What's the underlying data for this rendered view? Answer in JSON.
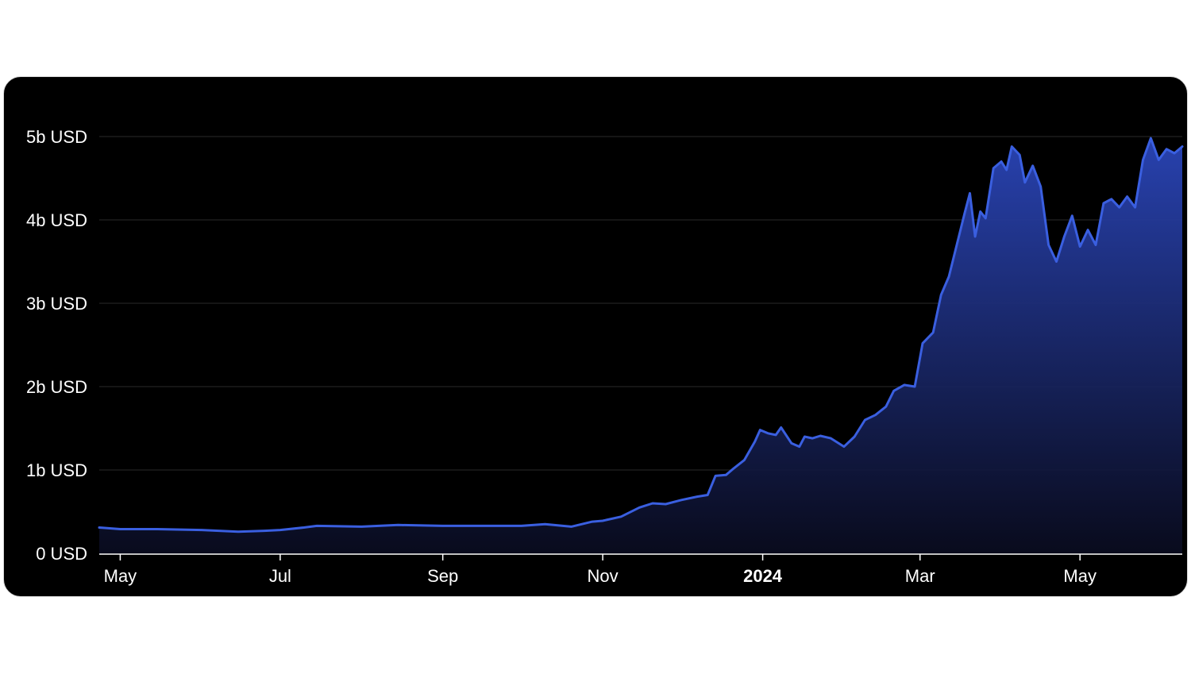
{
  "colors": {
    "background": "#000000",
    "line": "#3a5fe0",
    "area_top": "#2a45b8",
    "area_bottom": "#0a0c20",
    "grid": "#2a2a2a",
    "text": "#ffffff"
  },
  "chart_data": {
    "type": "area",
    "title": "",
    "xlabel": "",
    "ylabel": "",
    "unit": "USD",
    "ylim": [
      0,
      5000000000
    ],
    "xlim": [
      "2023-04-23",
      "2024-06-09"
    ],
    "grid": {
      "horizontal": true,
      "vertical": false
    },
    "legend": "none",
    "y_ticks": [
      {
        "value": 0,
        "label": "0 USD"
      },
      {
        "value": 1000000000,
        "label": "1b USD"
      },
      {
        "value": 2000000000,
        "label": "2b USD"
      },
      {
        "value": 3000000000,
        "label": "3b USD"
      },
      {
        "value": 4000000000,
        "label": "4b USD"
      },
      {
        "value": 5000000000,
        "label": "5b USD"
      }
    ],
    "x_ticks": [
      {
        "date": "2023-05-01",
        "label": "May",
        "bold": false
      },
      {
        "date": "2023-07-01",
        "label": "Jul",
        "bold": false
      },
      {
        "date": "2023-09-01",
        "label": "Sep",
        "bold": false
      },
      {
        "date": "2023-11-01",
        "label": "Nov",
        "bold": false
      },
      {
        "date": "2024-01-01",
        "label": "2024",
        "bold": true
      },
      {
        "date": "2024-03-01",
        "label": "Mar",
        "bold": false
      },
      {
        "date": "2024-05-01",
        "label": "May",
        "bold": false
      }
    ],
    "series": [
      {
        "points": [
          [
            "2023-04-23",
            0.31
          ],
          [
            "2023-05-01",
            0.29
          ],
          [
            "2023-05-15",
            0.29
          ],
          [
            "2023-06-01",
            0.28
          ],
          [
            "2023-06-15",
            0.26
          ],
          [
            "2023-06-25",
            0.27
          ],
          [
            "2023-07-01",
            0.28
          ],
          [
            "2023-07-10",
            0.31
          ],
          [
            "2023-07-15",
            0.33
          ],
          [
            "2023-08-01",
            0.32
          ],
          [
            "2023-08-15",
            0.34
          ],
          [
            "2023-09-01",
            0.33
          ],
          [
            "2023-09-15",
            0.33
          ],
          [
            "2023-10-01",
            0.33
          ],
          [
            "2023-10-10",
            0.35
          ],
          [
            "2023-10-20",
            0.32
          ],
          [
            "2023-10-28",
            0.38
          ],
          [
            "2023-11-01",
            0.39
          ],
          [
            "2023-11-08",
            0.44
          ],
          [
            "2023-11-15",
            0.55
          ],
          [
            "2023-11-20",
            0.6
          ],
          [
            "2023-11-25",
            0.59
          ],
          [
            "2023-12-01",
            0.64
          ],
          [
            "2023-12-07",
            0.68
          ],
          [
            "2023-12-11",
            0.7
          ],
          [
            "2023-12-14",
            0.93
          ],
          [
            "2023-12-18",
            0.94
          ],
          [
            "2023-12-21",
            1.02
          ],
          [
            "2023-12-25",
            1.12
          ],
          [
            "2023-12-29",
            1.34
          ],
          [
            "2023-12-31",
            1.48
          ],
          [
            "2024-01-03",
            1.44
          ],
          [
            "2024-01-06",
            1.42
          ],
          [
            "2024-01-08",
            1.51
          ],
          [
            "2024-01-12",
            1.32
          ],
          [
            "2024-01-15",
            1.28
          ],
          [
            "2024-01-17",
            1.4
          ],
          [
            "2024-01-20",
            1.38
          ],
          [
            "2024-01-23",
            1.41
          ],
          [
            "2024-01-27",
            1.38
          ],
          [
            "2024-02-01",
            1.28
          ],
          [
            "2024-02-05",
            1.4
          ],
          [
            "2024-02-09",
            1.6
          ],
          [
            "2024-02-13",
            1.66
          ],
          [
            "2024-02-17",
            1.76
          ],
          [
            "2024-02-20",
            1.95
          ],
          [
            "2024-02-24",
            2.02
          ],
          [
            "2024-02-28",
            2.0
          ],
          [
            "2024-03-02",
            2.52
          ],
          [
            "2024-03-06",
            2.65
          ],
          [
            "2024-03-09",
            3.1
          ],
          [
            "2024-03-12",
            3.32
          ],
          [
            "2024-03-15",
            3.7
          ],
          [
            "2024-03-18",
            4.08
          ],
          [
            "2024-03-20",
            4.32
          ],
          [
            "2024-03-22",
            3.8
          ],
          [
            "2024-03-24",
            4.1
          ],
          [
            "2024-03-26",
            4.02
          ],
          [
            "2024-03-29",
            4.62
          ],
          [
            "2024-04-01",
            4.7
          ],
          [
            "2024-04-03",
            4.6
          ],
          [
            "2024-04-05",
            4.88
          ],
          [
            "2024-04-08",
            4.78
          ],
          [
            "2024-04-10",
            4.45
          ],
          [
            "2024-04-13",
            4.65
          ],
          [
            "2024-04-16",
            4.4
          ],
          [
            "2024-04-19",
            3.7
          ],
          [
            "2024-04-22",
            3.5
          ],
          [
            "2024-04-25",
            3.8
          ],
          [
            "2024-04-28",
            4.05
          ],
          [
            "2024-05-01",
            3.68
          ],
          [
            "2024-05-04",
            3.88
          ],
          [
            "2024-05-07",
            3.7
          ],
          [
            "2024-05-10",
            4.2
          ],
          [
            "2024-05-13",
            4.25
          ],
          [
            "2024-05-16",
            4.15
          ],
          [
            "2024-05-19",
            4.28
          ],
          [
            "2024-05-22",
            4.15
          ],
          [
            "2024-05-25",
            4.72
          ],
          [
            "2024-05-28",
            4.98
          ],
          [
            "2024-05-31",
            4.72
          ],
          [
            "2024-06-03",
            4.85
          ],
          [
            "2024-06-06",
            4.8
          ],
          [
            "2024-06-09",
            4.88
          ]
        ],
        "value_scale": 1000000000
      }
    ]
  }
}
